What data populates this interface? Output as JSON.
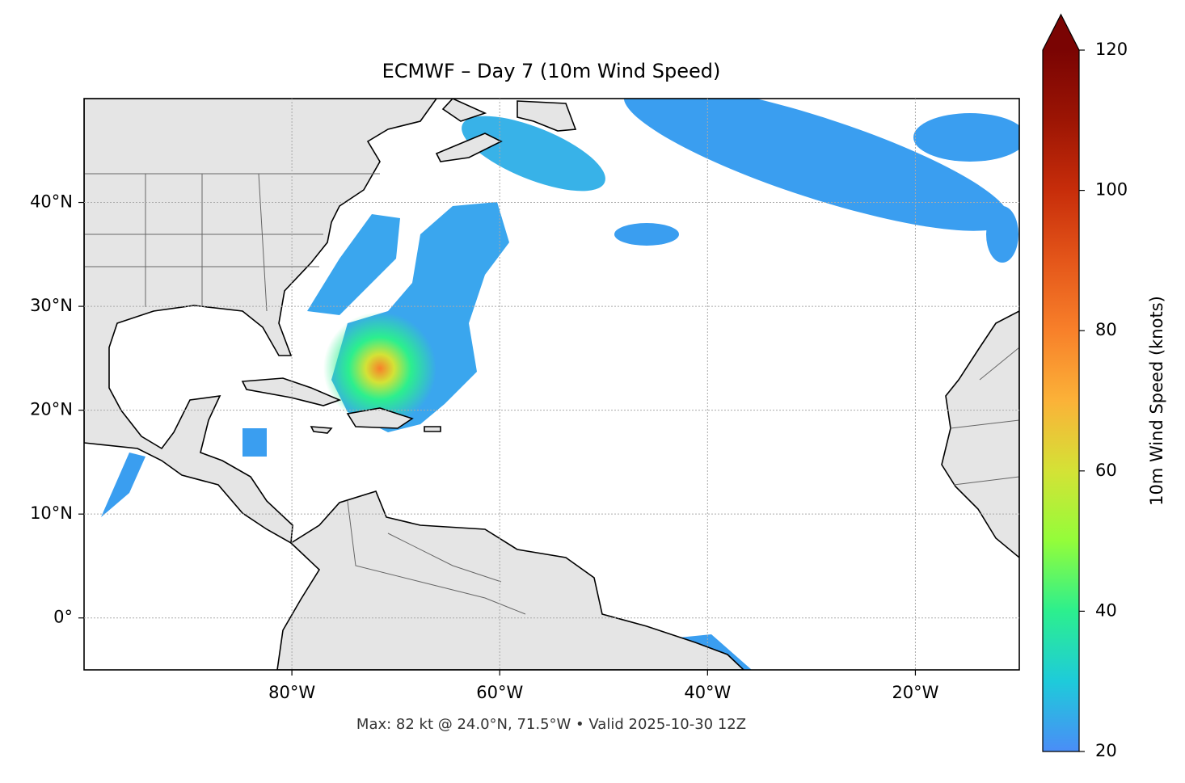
{
  "chart_data": {
    "type": "map",
    "title": "ECMWF – Day 7 (10m Wind Speed)",
    "footnote": "Max: 82 kt @ 24.0°N, 71.5°W • Valid 2025-10-30 12Z",
    "xlim": [
      -100,
      -10
    ],
    "ylim": [
      -5,
      50
    ],
    "xticks": [
      {
        "value": -80,
        "label": "80°W"
      },
      {
        "value": -60,
        "label": "60°W"
      },
      {
        "value": -40,
        "label": "40°W"
      },
      {
        "value": -20,
        "label": "20°W"
      }
    ],
    "yticks": [
      {
        "value": 0,
        "label": "0°"
      },
      {
        "value": 10,
        "label": "10°N"
      },
      {
        "value": 20,
        "label": "20°N"
      },
      {
        "value": 30,
        "label": "30°N"
      },
      {
        "value": 40,
        "label": "40°N"
      }
    ],
    "grid": true,
    "colorbar": {
      "label": "10m Wind Speed (knots)",
      "lim": [
        20,
        120
      ],
      "ticks": [
        20,
        40,
        60,
        80,
        100,
        120
      ],
      "extend": "max",
      "colors": [
        "#4a8df7",
        "#1ecbda",
        "#2cef8e",
        "#93fd3a",
        "#d4e236",
        "#fbb238",
        "#f8802a",
        "#e4561a",
        "#c72d0a",
        "#9c1504",
        "#7a0403"
      ]
    }
  }
}
